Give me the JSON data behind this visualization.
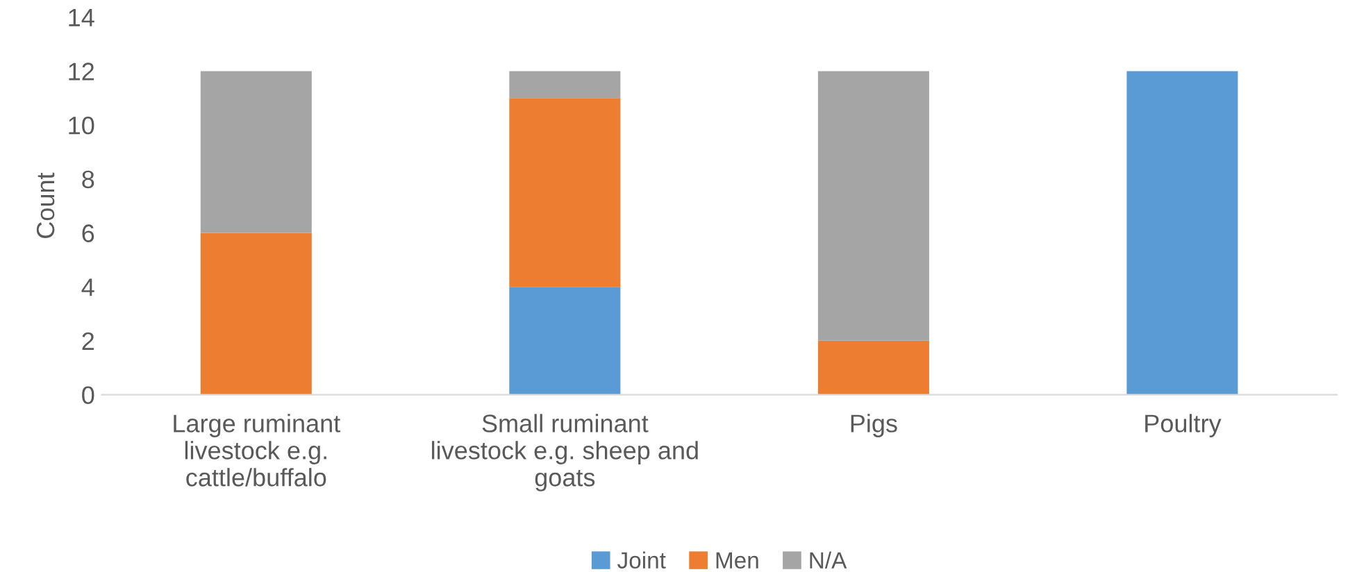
{
  "chart_data": {
    "type": "bar",
    "stacked": true,
    "ylabel": "Count",
    "categories": [
      "Large ruminant\nlivestock e.g.\ncattle/buffalo",
      "Small ruminant\nlivestock e.g. sheep and\ngoats",
      "Pigs",
      "Poultry"
    ],
    "series": [
      {
        "name": "Joint",
        "color": "#5b9bd5",
        "values": [
          0,
          4,
          0,
          12
        ]
      },
      {
        "name": "Men",
        "color": "#ed7d31",
        "values": [
          6,
          7,
          2,
          0
        ]
      },
      {
        "name": "N/A",
        "color": "#a5a5a5",
        "values": [
          6,
          1,
          10,
          0
        ]
      }
    ],
    "ylim": [
      0,
      14
    ],
    "yticks": [
      0,
      2,
      4,
      6,
      8,
      10,
      12,
      14
    ],
    "grid": false,
    "legend": "bottom"
  }
}
